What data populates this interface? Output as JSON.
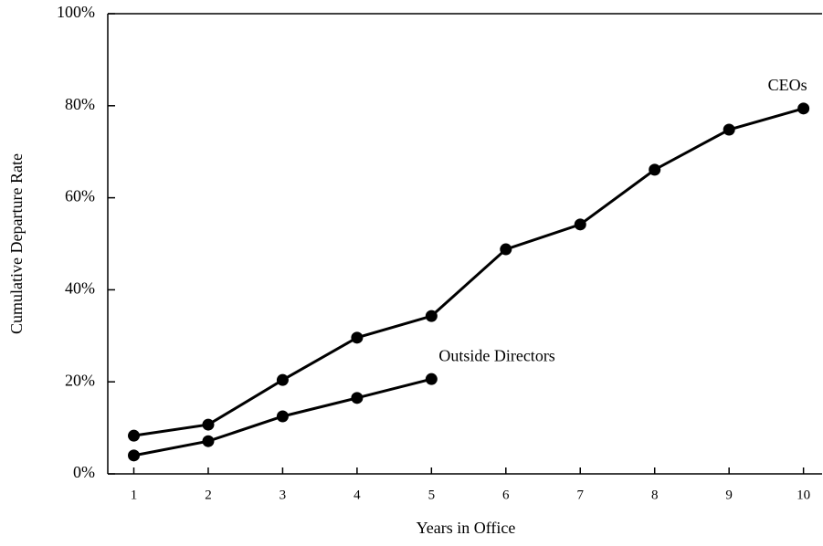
{
  "chart_data": {
    "type": "line",
    "x_label": "Years in Office",
    "y_label": "Cumulative Departure Rate",
    "x": [
      1,
      2,
      3,
      4,
      5,
      6,
      7,
      8,
      9,
      10
    ],
    "xlim": [
      0.65,
      10.25
    ],
    "xticks": [
      1,
      2,
      3,
      4,
      5,
      6,
      7,
      8,
      9,
      10
    ],
    "ylim": [
      0,
      100
    ],
    "yticks": [
      {
        "value": 0,
        "label": "0%"
      },
      {
        "value": 20,
        "label": "20%"
      },
      {
        "value": 40,
        "label": "40%"
      },
      {
        "value": 60,
        "label": "60%"
      },
      {
        "value": 80,
        "label": "80%"
      },
      {
        "value": 100,
        "label": "100%"
      }
    ],
    "series": [
      {
        "name": "CEOs",
        "color": "#000000",
        "values": [
          8.3,
          10.7,
          20.4,
          29.6,
          34.3,
          48.8,
          54.2,
          66.1,
          74.8,
          79.4
        ]
      },
      {
        "name": "Outside Directors",
        "color": "#000000",
        "values": [
          4.0,
          7.1,
          12.5,
          16.5,
          20.6,
          null,
          null,
          null,
          null,
          null
        ]
      }
    ]
  }
}
